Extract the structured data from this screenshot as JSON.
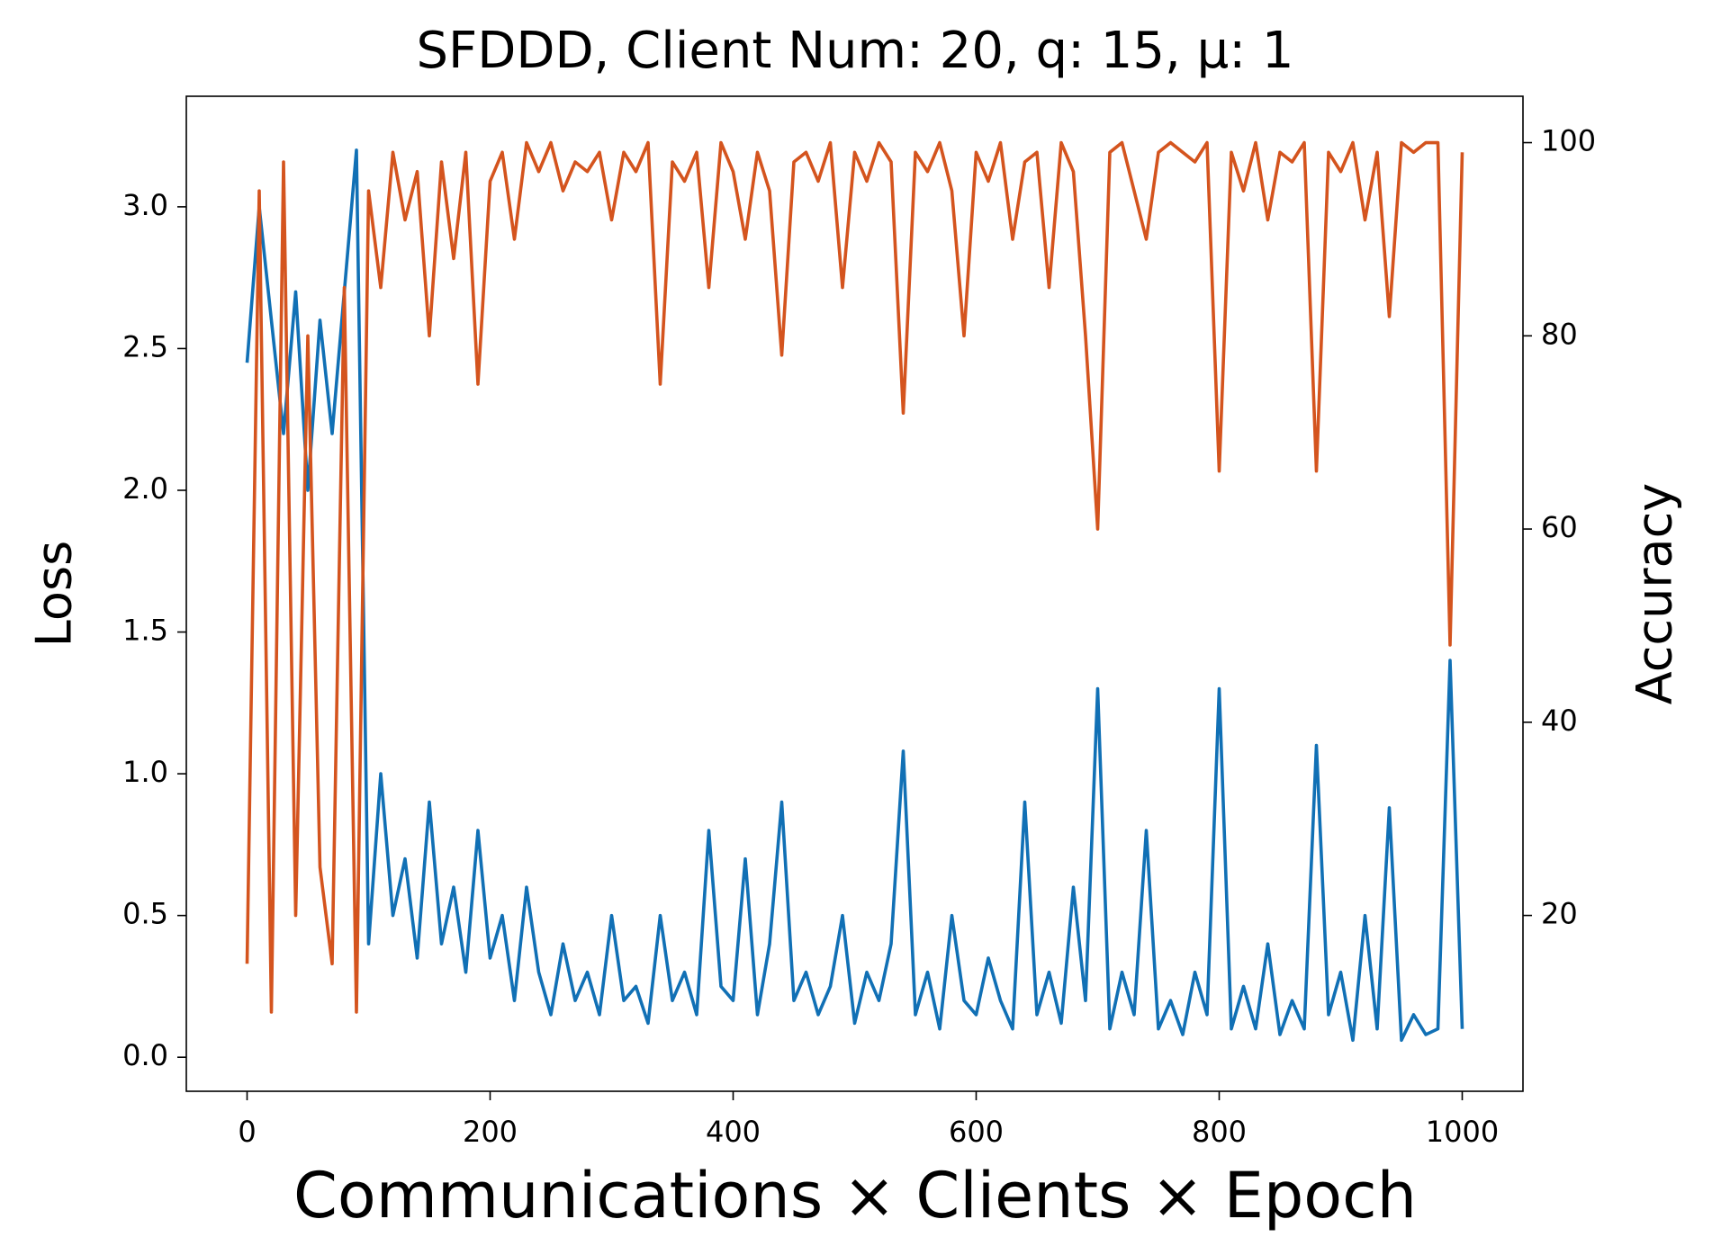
{
  "chart_data": {
    "type": "line",
    "title": "SFDDD, Client Num: 20, q: 15, μ: 1",
    "x_label": "Communications × Clients × Epoch",
    "y_label": "Loss",
    "y2_label": "Accuracy",
    "x": [
      0,
      10,
      20,
      30,
      40,
      50,
      60,
      70,
      80,
      90,
      100,
      110,
      120,
      130,
      140,
      150,
      160,
      170,
      180,
      190,
      200,
      210,
      220,
      230,
      240,
      250,
      260,
      270,
      280,
      290,
      300,
      310,
      320,
      330,
      340,
      350,
      360,
      370,
      380,
      390,
      400,
      410,
      420,
      430,
      440,
      450,
      460,
      470,
      480,
      490,
      500,
      510,
      520,
      530,
      540,
      550,
      560,
      570,
      580,
      590,
      600,
      610,
      620,
      630,
      640,
      650,
      660,
      670,
      680,
      690,
      700,
      710,
      720,
      730,
      740,
      750,
      760,
      770,
      780,
      790,
      800,
      810,
      820,
      830,
      840,
      850,
      860,
      870,
      880,
      890,
      900,
      910,
      920,
      930,
      940,
      950,
      960,
      970,
      980,
      990,
      1000
    ],
    "series": [
      {
        "name": "Loss",
        "color": "#1170b5",
        "axis": "y",
        "values": [
          2.45,
          3.0,
          2.6,
          2.2,
          2.7,
          2.0,
          2.6,
          2.2,
          2.7,
          3.2,
          0.4,
          1.0,
          0.5,
          0.7,
          0.35,
          0.9,
          0.4,
          0.6,
          0.3,
          0.8,
          0.35,
          0.5,
          0.2,
          0.6,
          0.3,
          0.15,
          0.4,
          0.2,
          0.3,
          0.15,
          0.5,
          0.2,
          0.25,
          0.12,
          0.5,
          0.2,
          0.3,
          0.15,
          0.8,
          0.25,
          0.2,
          0.7,
          0.15,
          0.4,
          0.9,
          0.2,
          0.3,
          0.15,
          0.25,
          0.5,
          0.12,
          0.3,
          0.2,
          0.4,
          1.08,
          0.15,
          0.3,
          0.1,
          0.5,
          0.2,
          0.15,
          0.35,
          0.2,
          0.1,
          0.9,
          0.15,
          0.3,
          0.12,
          0.6,
          0.2,
          1.3,
          0.1,
          0.3,
          0.15,
          0.8,
          0.1,
          0.2,
          0.08,
          0.3,
          0.15,
          1.3,
          0.1,
          0.25,
          0.1,
          0.4,
          0.08,
          0.2,
          0.1,
          1.1,
          0.15,
          0.3,
          0.06,
          0.5,
          0.1,
          0.88,
          0.06,
          0.15,
          0.08,
          0.1,
          1.4,
          0.1
        ]
      },
      {
        "name": "Accuracy",
        "color": "#d4541e",
        "axis": "y2",
        "values": [
          15,
          95,
          10,
          98,
          20,
          80,
          25,
          15,
          85,
          10,
          95,
          85,
          99,
          92,
          97,
          80,
          98,
          88,
          99,
          75,
          96,
          99,
          90,
          100,
          97,
          100,
          95,
          98,
          97,
          99,
          92,
          99,
          97,
          100,
          75,
          98,
          96,
          99,
          85,
          100,
          97,
          90,
          99,
          95,
          78,
          98,
          99,
          96,
          100,
          85,
          99,
          96,
          100,
          98,
          72,
          99,
          97,
          100,
          95,
          80,
          99,
          96,
          100,
          90,
          98,
          99,
          85,
          100,
          97,
          80,
          60,
          99,
          100,
          95,
          90,
          99,
          100,
          99,
          98,
          100,
          66,
          99,
          95,
          100,
          92,
          99,
          98,
          100,
          66,
          99,
          97,
          100,
          92,
          99,
          82,
          100,
          99,
          100,
          100,
          48,
          99
        ]
      }
    ],
    "xlim": [
      -50,
      1050
    ],
    "xticks": [
      0,
      200,
      400,
      600,
      800,
      1000
    ],
    "ylim": [
      -0.12,
      3.39
    ],
    "yticks": [
      {
        "value": 0,
        "label": "0.0"
      },
      0.5,
      {
        "value": 1,
        "label": "1.0"
      },
      1.5,
      {
        "value": 2,
        "label": "2.0"
      },
      2.5,
      {
        "value": 3,
        "label": "3.0"
      }
    ],
    "y2lim": [
      1.8,
      104.8
    ],
    "y2ticks": [
      20,
      40,
      60,
      80,
      100
    ],
    "grid": false
  }
}
